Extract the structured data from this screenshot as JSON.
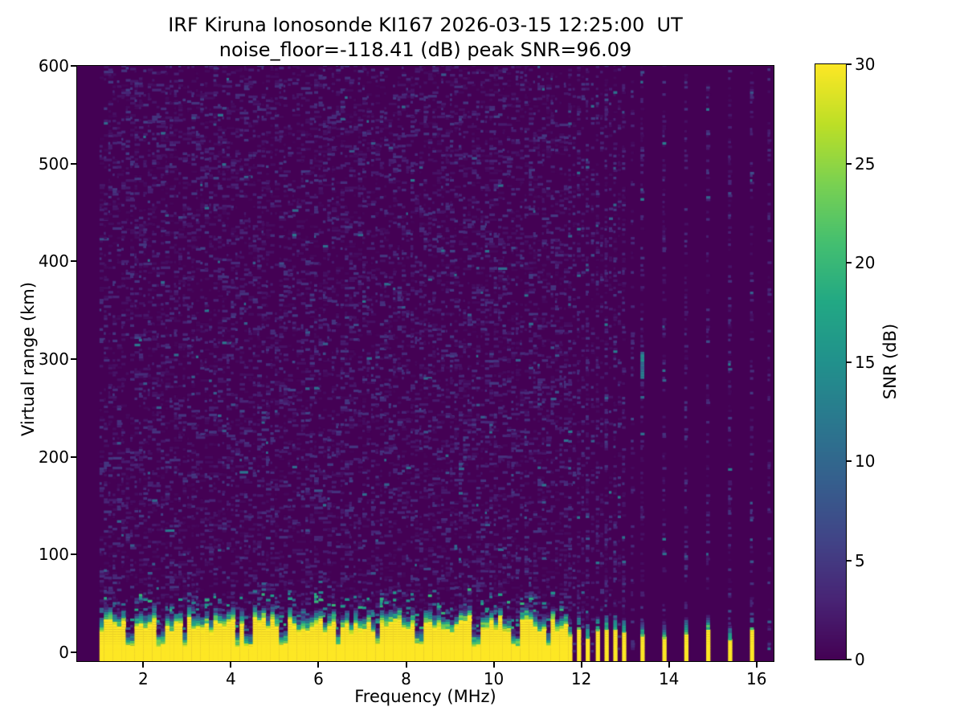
{
  "chart_data": {
    "type": "heatmap",
    "title": "IRF Kiruna Ionosonde KI167 2026-03-15 12:25:00  UT",
    "subtitle": "noise_floor=-118.41 (dB) peak SNR=96.09",
    "station": "KI167",
    "observatory": "IRF Kiruna Ionosonde",
    "timestamp_ut": "2026-03-15 12:25:00",
    "noise_floor_db": -118.41,
    "peak_snr_db": 96.09,
    "xlabel": "Frequency (MHz)",
    "ylabel": "Virtual range (km)",
    "xlim": [
      0.49,
      16.39
    ],
    "ylim": [
      -9,
      600
    ],
    "xticks": [
      2,
      4,
      6,
      8,
      10,
      12,
      14,
      16
    ],
    "yticks": [
      0,
      100,
      200,
      300,
      400,
      500,
      600
    ],
    "grid": false,
    "colorbar": {
      "label": "SNR (dB)",
      "min": 0,
      "max": 30,
      "ticks": [
        0,
        5,
        10,
        15,
        20,
        25,
        30
      ],
      "colormap": "viridis",
      "position": "right"
    },
    "colormap_stops": [
      {
        "t": 0.0,
        "c": "#440154"
      },
      {
        "t": 0.1,
        "c": "#482475"
      },
      {
        "t": 0.2,
        "c": "#414487"
      },
      {
        "t": 0.3,
        "c": "#355f8d"
      },
      {
        "t": 0.4,
        "c": "#2a788e"
      },
      {
        "t": 0.5,
        "c": "#21918c"
      },
      {
        "t": 0.6,
        "c": "#22a884"
      },
      {
        "t": 0.7,
        "c": "#44bf70"
      },
      {
        "t": 0.8,
        "c": "#7ad151"
      },
      {
        "t": 0.9,
        "c": "#bddf26"
      },
      {
        "t": 1.0,
        "c": "#fde725"
      }
    ],
    "features": {
      "sweep_freq_range_mhz": [
        1.0,
        16.39
      ],
      "no_data_below_mhz": 1.0,
      "background_noise": {
        "freq_range_mhz": [
          1.0,
          11.64
        ],
        "typical_snr_db": [
          0,
          5
        ],
        "speckle_coverage": 0.5
      },
      "ground_clutter_band": {
        "freq_range_mhz": [
          1.0,
          11.64
        ],
        "solid_snr_db": 30,
        "solid_top_km_range": [
          18,
          35
        ],
        "transition_top_km": 50,
        "notch_freqs_mhz": [
          1.65,
          2.35,
          2.9,
          4.1,
          4.35,
          5.15,
          6.4,
          7.3,
          8.25,
          9.55,
          10.45,
          11.2
        ]
      },
      "rfi_columns_mhz": {
        "strong_cluster": [
          11.7,
          11.9,
          12.1,
          12.33,
          12.53,
          12.73,
          12.93
        ],
        "strong_isolated": [
          13.35,
          13.85,
          14.35,
          14.85,
          15.35,
          15.85
        ],
        "faint": [
          11.8,
          12.0,
          12.22,
          12.43,
          12.63,
          12.83,
          13.13,
          16.25
        ]
      },
      "echo_streak": {
        "freq_mhz": 13.35,
        "range_km": [
          280,
          305
        ],
        "snr_db": 12
      }
    }
  }
}
